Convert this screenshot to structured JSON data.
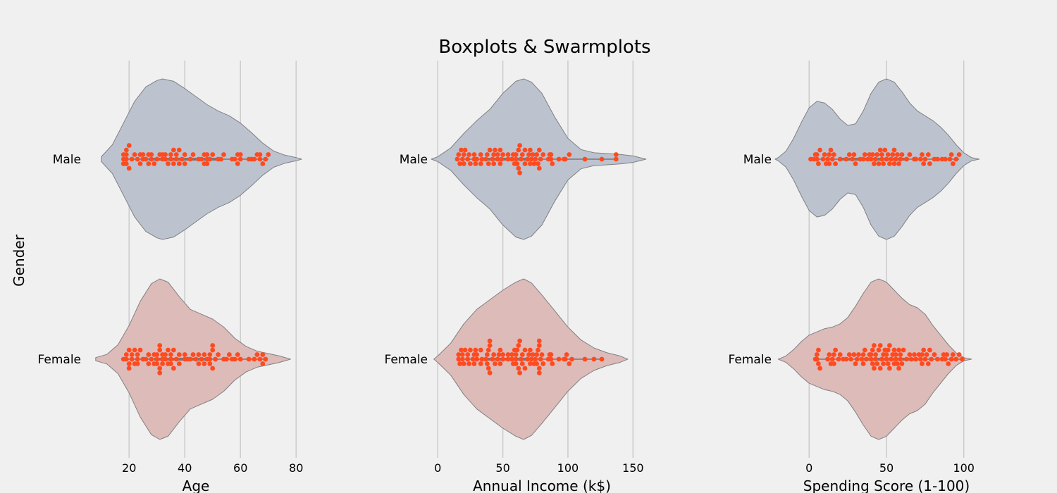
{
  "chart_data": {
    "type": "violin",
    "title": "Boxplots & Swarmplots",
    "ylabel": "Gender",
    "categories": [
      "Male",
      "Female"
    ],
    "colors": {
      "background": "#f0f0f0",
      "grid": "#cbcbcb",
      "male_fill": "#bcc3cf",
      "female_fill": "#dcbbb9",
      "outline": "#808080",
      "points": "#ff4a1f",
      "box_line": "#777777"
    },
    "panels": [
      {
        "xlabel": "Age",
        "xlim": [
          4,
          84
        ],
        "ticks": [
          20,
          40,
          60,
          80
        ],
        "violins": [
          {
            "category": "Male",
            "density": [
              [
                10,
                0.03
              ],
              [
                14,
                0.18
              ],
              [
                18,
                0.45
              ],
              [
                22,
                0.72
              ],
              [
                26,
                0.9
              ],
              [
                30,
                0.98
              ],
              [
                32,
                1.0
              ],
              [
                36,
                0.97
              ],
              [
                40,
                0.88
              ],
              [
                44,
                0.78
              ],
              [
                48,
                0.68
              ],
              [
                52,
                0.6
              ],
              [
                56,
                0.54
              ],
              [
                60,
                0.45
              ],
              [
                64,
                0.33
              ],
              [
                68,
                0.2
              ],
              [
                72,
                0.1
              ],
              [
                76,
                0.05
              ],
              [
                80,
                0.02
              ],
              [
                82,
                0.0
              ]
            ],
            "points": [
              18,
              18,
              18,
              19,
              19,
              19,
              19,
              20,
              20,
              21,
              22,
              23,
              24,
              24,
              25,
              25,
              26,
              27,
              27,
              28,
              28,
              29,
              30,
              31,
              32,
              32,
              33,
              33,
              34,
              35,
              35,
              36,
              36,
              37,
              37,
              38,
              38,
              39,
              40,
              40,
              42,
              43,
              45,
              46,
              47,
              47,
              48,
              48,
              48,
              49,
              50,
              52,
              53,
              54,
              57,
              58,
              59,
              59,
              60,
              60,
              63,
              64,
              65,
              66,
              67,
              67,
              68,
              69,
              70
            ]
          },
          {
            "category": "Female",
            "density": [
              [
                8,
                0.02
              ],
              [
                12,
                0.06
              ],
              [
                16,
                0.18
              ],
              [
                20,
                0.42
              ],
              [
                24,
                0.72
              ],
              [
                28,
                0.94
              ],
              [
                31,
                1.0
              ],
              [
                34,
                0.96
              ],
              [
                38,
                0.78
              ],
              [
                42,
                0.62
              ],
              [
                46,
                0.56
              ],
              [
                50,
                0.5
              ],
              [
                54,
                0.4
              ],
              [
                58,
                0.26
              ],
              [
                62,
                0.16
              ],
              [
                66,
                0.1
              ],
              [
                70,
                0.07
              ],
              [
                74,
                0.04
              ],
              [
                78,
                0.0
              ]
            ],
            "points": [
              18,
              19,
              19,
              20,
              20,
              20,
              21,
              21,
              22,
              22,
              23,
              23,
              23,
              24,
              25,
              26,
              27,
              27,
              28,
              29,
              29,
              30,
              30,
              30,
              31,
              31,
              31,
              31,
              32,
              32,
              32,
              33,
              33,
              34,
              34,
              35,
              35,
              35,
              36,
              36,
              37,
              38,
              38,
              40,
              40,
              41,
              42,
              43,
              44,
              45,
              45,
              46,
              47,
              47,
              48,
              49,
              49,
              49,
              50,
              50,
              50,
              51,
              52,
              54,
              55,
              56,
              57,
              58,
              59,
              60,
              63,
              65,
              66,
              67,
              68,
              68,
              69
            ]
          }
        ]
      },
      {
        "xlabel": "Annual Income (k$)",
        "xlim": [
          -5,
          165
        ],
        "ticks": [
          0,
          50,
          100,
          150
        ],
        "violins": [
          {
            "category": "Male",
            "density": [
              [
                -5,
                0.0
              ],
              [
                0,
                0.03
              ],
              [
                10,
                0.14
              ],
              [
                20,
                0.32
              ],
              [
                30,
                0.48
              ],
              [
                40,
                0.62
              ],
              [
                50,
                0.82
              ],
              [
                60,
                0.97
              ],
              [
                66,
                1.0
              ],
              [
                72,
                0.96
              ],
              [
                80,
                0.82
              ],
              [
                90,
                0.52
              ],
              [
                100,
                0.26
              ],
              [
                110,
                0.12
              ],
              [
                120,
                0.08
              ],
              [
                130,
                0.07
              ],
              [
                140,
                0.06
              ],
              [
                150,
                0.04
              ],
              [
                160,
                0.0
              ]
            ],
            "points": [
              15,
              16,
              17,
              18,
              19,
              20,
              20,
              21,
              23,
              24,
              25,
              28,
              28,
              29,
              30,
              33,
              33,
              34,
              37,
              38,
              39,
              40,
              42,
              43,
              43,
              44,
              46,
              46,
              48,
              48,
              49,
              50,
              54,
              54,
              57,
              58,
              59,
              60,
              60,
              61,
              62,
              62,
              63,
              63,
              64,
              65,
              67,
              67,
              69,
              70,
              71,
              71,
              72,
              73,
              74,
              75,
              76,
              77,
              78,
              78,
              79,
              81,
              85,
              86,
              87,
              87,
              88,
              93,
              97,
              98,
              101,
              113,
              126,
              137,
              137
            ]
          },
          {
            "category": "Female",
            "density": [
              [
                -3,
                0.0
              ],
              [
                0,
                0.04
              ],
              [
                10,
                0.2
              ],
              [
                20,
                0.44
              ],
              [
                30,
                0.62
              ],
              [
                40,
                0.74
              ],
              [
                50,
                0.86
              ],
              [
                60,
                0.96
              ],
              [
                66,
                1.0
              ],
              [
                72,
                0.95
              ],
              [
                80,
                0.8
              ],
              [
                90,
                0.6
              ],
              [
                100,
                0.4
              ],
              [
                110,
                0.24
              ],
              [
                120,
                0.14
              ],
              [
                130,
                0.08
              ],
              [
                140,
                0.04
              ],
              [
                146,
                0.0
              ]
            ],
            "points": [
              16,
              16,
              17,
              18,
              19,
              19,
              20,
              21,
              23,
              23,
              24,
              25,
              27,
              28,
              28,
              29,
              30,
              30,
              33,
              33,
              34,
              37,
              38,
              38,
              39,
              39,
              40,
              40,
              40,
              42,
              43,
              44,
              46,
              47,
              48,
              48,
              50,
              50,
              54,
              54,
              57,
              57,
              58,
              59,
              60,
              60,
              60,
              61,
              62,
              62,
              63,
              63,
              64,
              65,
              65,
              67,
              67,
              69,
              70,
              71,
              71,
              72,
              73,
              74,
              75,
              76,
              76,
              77,
              78,
              78,
              78,
              78,
              79,
              80,
              81,
              85,
              86,
              87,
              87,
              88,
              93,
              97,
              98,
              99,
              101,
              103,
              113,
              120,
              126
            ]
          }
        ]
      },
      {
        "xlabel": "Spending Score (1-100)",
        "xlim": [
          -22,
          122
        ],
        "ticks": [
          0,
          50,
          100
        ],
        "violins": [
          {
            "category": "Male",
            "density": [
              [
                -22,
                0.0
              ],
              [
                -20,
                0.02
              ],
              [
                -15,
                0.1
              ],
              [
                -10,
                0.26
              ],
              [
                -5,
                0.46
              ],
              [
                0,
                0.64
              ],
              [
                5,
                0.72
              ],
              [
                10,
                0.7
              ],
              [
                15,
                0.62
              ],
              [
                20,
                0.5
              ],
              [
                25,
                0.42
              ],
              [
                30,
                0.44
              ],
              [
                35,
                0.6
              ],
              [
                40,
                0.82
              ],
              [
                45,
                0.96
              ],
              [
                50,
                1.0
              ],
              [
                55,
                0.96
              ],
              [
                60,
                0.84
              ],
              [
                65,
                0.7
              ],
              [
                70,
                0.6
              ],
              [
                75,
                0.54
              ],
              [
                80,
                0.48
              ],
              [
                85,
                0.4
              ],
              [
                90,
                0.3
              ],
              [
                95,
                0.18
              ],
              [
                100,
                0.08
              ],
              [
                105,
                0.02
              ],
              [
                110,
                0.0
              ]
            ],
            "points": [
              1,
              3,
              4,
              5,
              5,
              6,
              7,
              9,
              10,
              11,
              12,
              13,
              13,
              14,
              15,
              16,
              17,
              20,
              24,
              26,
              28,
              29,
              30,
              33,
              35,
              36,
              38,
              39,
              40,
              41,
              42,
              43,
              44,
              45,
              46,
              47,
              47,
              48,
              49,
              50,
              51,
              52,
              53,
              54,
              55,
              55,
              56,
              57,
              58,
              59,
              60,
              63,
              65,
              68,
              69,
              72,
              73,
              74,
              75,
              77,
              78,
              81,
              83,
              86,
              88,
              91,
              92,
              93,
              95,
              97
            ]
          },
          {
            "category": "Female",
            "density": [
              [
                -20,
                0.0
              ],
              [
                -15,
                0.04
              ],
              [
                -10,
                0.12
              ],
              [
                -5,
                0.22
              ],
              [
                0,
                0.3
              ],
              [
                5,
                0.34
              ],
              [
                10,
                0.38
              ],
              [
                15,
                0.4
              ],
              [
                20,
                0.44
              ],
              [
                25,
                0.52
              ],
              [
                30,
                0.66
              ],
              [
                35,
                0.82
              ],
              [
                40,
                0.96
              ],
              [
                45,
                1.0
              ],
              [
                50,
                0.96
              ],
              [
                55,
                0.86
              ],
              [
                60,
                0.76
              ],
              [
                65,
                0.68
              ],
              [
                70,
                0.64
              ],
              [
                75,
                0.56
              ],
              [
                80,
                0.42
              ],
              [
                85,
                0.3
              ],
              [
                90,
                0.18
              ],
              [
                95,
                0.08
              ],
              [
                100,
                0.02
              ],
              [
                105,
                0.0
              ]
            ],
            "points": [
              4,
              5,
              5,
              6,
              6,
              7,
              12,
              13,
              14,
              15,
              16,
              16,
              17,
              19,
              20,
              22,
              24,
              26,
              27,
              29,
              30,
              31,
              32,
              34,
              35,
              35,
              36,
              37,
              39,
              40,
              40,
              41,
              41,
              42,
              42,
              43,
              43,
              44,
              45,
              46,
              46,
              47,
              48,
              48,
              49,
              50,
              50,
              51,
              51,
              52,
              52,
              53,
              54,
              55,
              55,
              56,
              56,
              57,
              58,
              58,
              59,
              59,
              60,
              61,
              63,
              65,
              66,
              68,
              69,
              71,
              72,
              73,
              73,
              74,
              75,
              76,
              77,
              78,
              79,
              81,
              83,
              86,
              87,
              88,
              89,
              90,
              92,
              93,
              95,
              97,
              99
            ]
          }
        ]
      }
    ]
  }
}
